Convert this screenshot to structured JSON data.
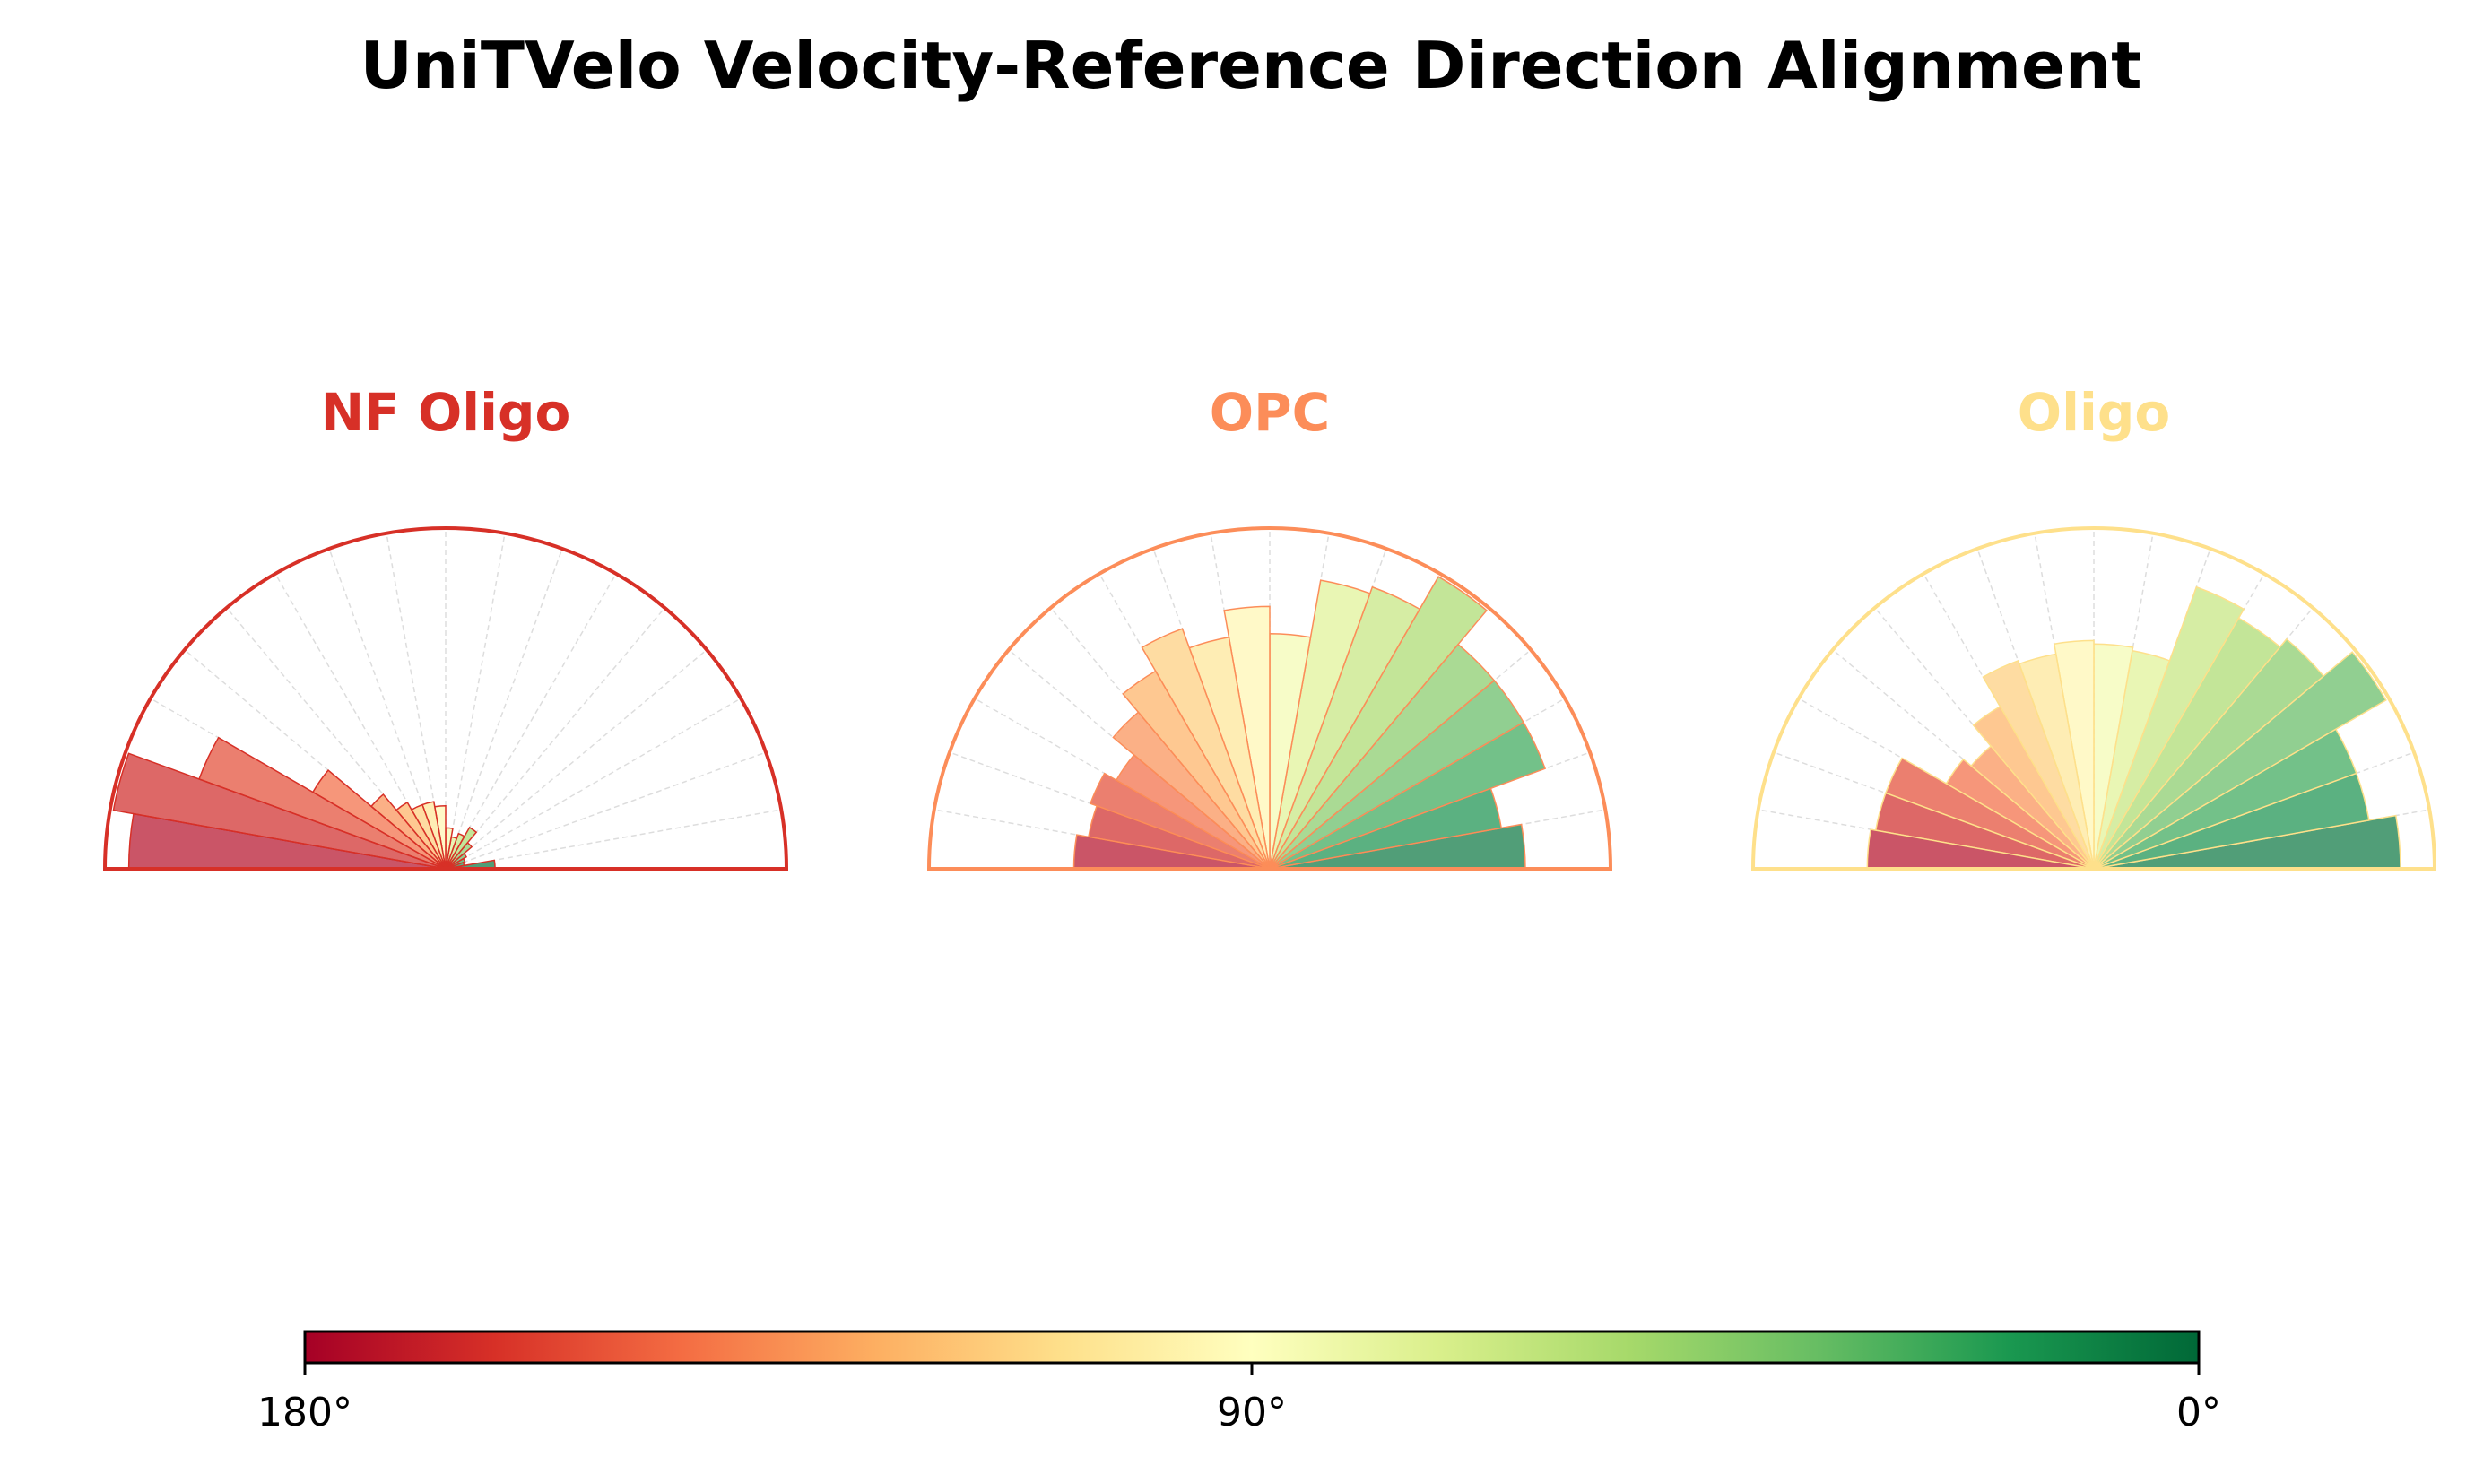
{
  "chart_data": {
    "type": "polar-bar",
    "title": "UniTVelo Velocity-Reference Direction Alignment",
    "bin_edges_deg": [
      0,
      10,
      20,
      30,
      40,
      50,
      60,
      70,
      80,
      90,
      100,
      110,
      120,
      130,
      140,
      150,
      160,
      170,
      180
    ],
    "radial_range": [
      0,
      1
    ],
    "grid": true,
    "colormap": "RdYlGn (180° red → 0° green)",
    "panels": [
      {
        "name": "NF Oligo",
        "color": "#d73027",
        "values_by_bin_0_to_180": [
          0.145,
          0.055,
          0.06,
          0.07,
          0.1,
          0.14,
          0.11,
          0.095,
          0.12,
          0.185,
          0.2,
          0.2,
          0.225,
          0.285,
          0.45,
          0.77,
          0.99,
          0.93
        ]
      },
      {
        "name": "OPC",
        "color": "#fc8d59",
        "values_by_bin_0_to_180": [
          0.75,
          0.69,
          0.86,
          0.86,
          0.86,
          0.99,
          0.88,
          0.86,
          0.69,
          0.77,
          0.69,
          0.75,
          0.67,
          0.6,
          0.52,
          0.56,
          0.54,
          0.575
        ]
      },
      {
        "name": "Oligo",
        "color": "#fee08b",
        "values_by_bin_0_to_180": [
          0.9,
          0.82,
          0.82,
          0.99,
          0.88,
          0.85,
          0.88,
          0.65,
          0.66,
          0.67,
          0.64,
          0.65,
          0.55,
          0.47,
          0.5,
          0.65,
          0.65,
          0.665
        ]
      }
    ],
    "colorbar": {
      "ticks": [
        "180°",
        "90°",
        "0°"
      ],
      "range": [
        180,
        0
      ]
    }
  }
}
